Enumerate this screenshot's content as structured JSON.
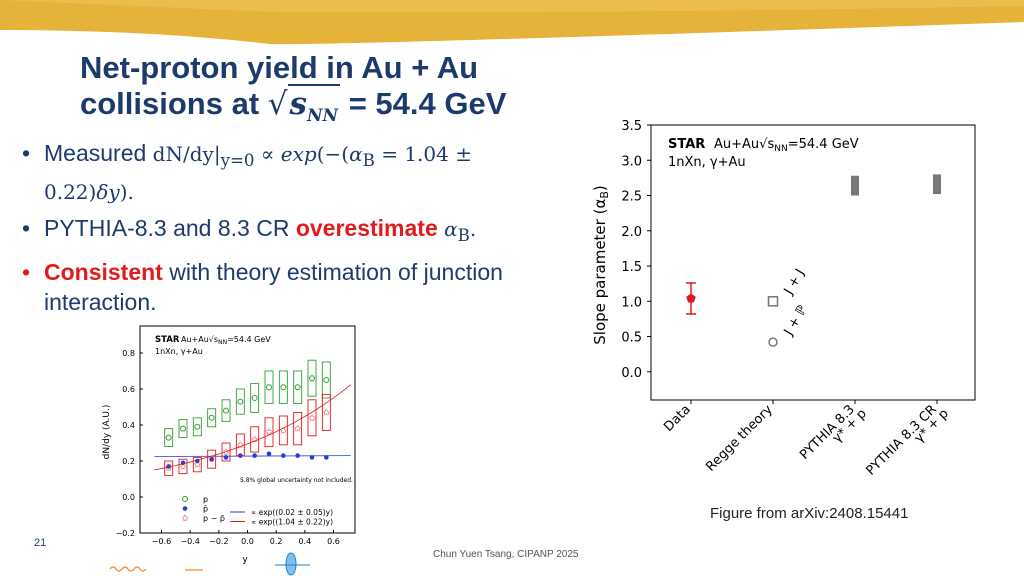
{
  "slide": {
    "title_line1": "Net-proton yield in Au + Au",
    "title_line2_prefix": "collisions at ",
    "title_sqrt_var": "s",
    "title_sqrt_sub": "NN",
    "title_line2_suffix": " = 54.4 GeV",
    "bullet1_text": "Measured ",
    "bullet1_math_a": "dN/dy|",
    "bullet1_math_sub": "y=0",
    "bullet1_math_b": " ∝ ",
    "bullet1_math_c": "exp",
    "bullet1_math_d": "(−(",
    "bullet1_math_e": "α",
    "bullet1_math_esub": "B",
    "bullet1_math_f": " = 1.04 ±",
    "bullet1_line2": "0.22)",
    "bullet1_line2_var": "δy",
    "bullet1_line2_end": ").",
    "bullet2_text": "PYTHIA-8.3 and 8.3 CR ",
    "bullet2_red": "overestimate",
    "bullet2_var": "α",
    "bullet2_varsub": "B",
    "bullet2_end": ".",
    "bullet3_red": "Consistent",
    "bullet3_text": " with theory estimation of junction",
    "bullet3_line2": "interaction.",
    "bullet_symbol": "•",
    "slide_number": "21",
    "footer": "Chun Yuen Tsang, CIPANP 2025",
    "caption": "Figure from arXiv:2408.15441"
  },
  "chart_data": [
    {
      "type": "scatter",
      "title": "",
      "star_label": "STAR",
      "legend_line1_a": "Au+Au",
      "legend_line1_b": "s",
      "legend_line1_sub": "NN",
      "legend_line1_c": "=54.4 GeV",
      "legend_line2": "1nXn, γ+Au",
      "xlabel": "y",
      "ylabel": "dN/dy (A.U.)",
      "xlim": [
        -0.75,
        0.75
      ],
      "ylim": [
        -0.2,
        0.95
      ],
      "xticks": [
        "−0.6",
        "−0.4",
        "−0.2",
        "0.0",
        "0.2",
        "0.4",
        "0.6"
      ],
      "xtick_values": [
        -0.6,
        -0.4,
        -0.2,
        0.0,
        0.2,
        0.4,
        0.6
      ],
      "yticks": [
        "−0.2",
        "0.0",
        "0.2",
        "0.4",
        "0.6",
        "0.8"
      ],
      "ytick_values": [
        -0.2,
        0.0,
        0.2,
        0.4,
        0.6,
        0.8
      ],
      "note": "5.8% global uncertainty not included.",
      "series": [
        {
          "name": "p",
          "color": "#2ca02c",
          "marker": "open-circle",
          "x": [
            -0.55,
            -0.45,
            -0.35,
            -0.25,
            -0.15,
            -0.05,
            0.05,
            0.15,
            0.25,
            0.35,
            0.45,
            0.55
          ],
          "y": [
            0.33,
            0.38,
            0.39,
            0.44,
            0.48,
            0.53,
            0.55,
            0.61,
            0.61,
            0.61,
            0.66,
            0.65
          ],
          "sys": [
            0.05,
            0.05,
            0.05,
            0.05,
            0.06,
            0.07,
            0.08,
            0.09,
            0.09,
            0.09,
            0.1,
            0.1
          ]
        },
        {
          "name": "p̄",
          "color": "#1f3fd6",
          "marker": "filled-circle",
          "x": [
            -0.55,
            -0.45,
            -0.35,
            -0.25,
            -0.15,
            -0.05,
            0.05,
            0.15,
            0.25,
            0.35,
            0.45,
            0.55
          ],
          "y": [
            0.17,
            0.19,
            0.2,
            0.21,
            0.22,
            0.23,
            0.23,
            0.24,
            0.23,
            0.23,
            0.22,
            0.22
          ],
          "sys": [
            0.01,
            0.01,
            0.01,
            0.01,
            0.01,
            0.01,
            0.01,
            0.01,
            0.01,
            0.01,
            0.01,
            0.01
          ]
        },
        {
          "name": "p − p̄",
          "color": "#e31a1c",
          "marker": "open-star",
          "x": [
            -0.55,
            -0.45,
            -0.35,
            -0.25,
            -0.15,
            -0.05,
            0.05,
            0.15,
            0.25,
            0.35,
            0.45,
            0.55
          ],
          "y": [
            0.16,
            0.17,
            0.18,
            0.21,
            0.25,
            0.29,
            0.32,
            0.36,
            0.37,
            0.38,
            0.44,
            0.47
          ],
          "sys": [
            0.04,
            0.04,
            0.04,
            0.05,
            0.05,
            0.06,
            0.07,
            0.08,
            0.08,
            0.09,
            0.1,
            0.1
          ]
        }
      ],
      "fit_lines": [
        {
          "label": "∝ exp((0.02 ± 0.05)y)",
          "color": "#1f3fd6"
        },
        {
          "label": "∝ exp((1.04 ± 0.22)y)",
          "color": "#e31a1c"
        }
      ]
    },
    {
      "type": "scatter",
      "title": "",
      "star_label": "STAR",
      "legend_line1_a": "Au+Au",
      "legend_line1_b": "s",
      "legend_line1_sub": "NN",
      "legend_line1_c": "=54.4 GeV",
      "legend_line2": "1nXn, γ+Au",
      "ylabel": "Slope parameter (α",
      "ylabel_sub": "B",
      "ylabel_end": ")",
      "ylim": [
        -0.4,
        3.5
      ],
      "yticks": [
        "0.0",
        "0.5",
        "1.0",
        "1.5",
        "2.0",
        "2.5",
        "3.0",
        "3.5"
      ],
      "ytick_values": [
        0.0,
        0.5,
        1.0,
        1.5,
        2.0,
        2.5,
        3.0,
        3.5
      ],
      "categories": [
        "Data",
        "Regge theory",
        "PYTHIA 8.3",
        "PYTHIA 8.3 CR"
      ],
      "category_sub": [
        "",
        "",
        "γ* + p",
        "γ* + p"
      ],
      "data_point": {
        "category": "Data",
        "value": 1.04,
        "err_low": 0.22,
        "err_high": 0.22,
        "color": "#e31a1c"
      },
      "regge": [
        {
          "label": "J + J",
          "value": 1.0,
          "marker": "open-square"
        },
        {
          "label": "J + ℙ",
          "value": 0.42,
          "marker": "open-circle"
        }
      ],
      "pythia_bands": [
        {
          "category": "PYTHIA 8.3",
          "low": 2.5,
          "high": 2.78
        },
        {
          "category": "PYTHIA 8.3 CR",
          "low": 2.52,
          "high": 2.8
        }
      ]
    }
  ]
}
